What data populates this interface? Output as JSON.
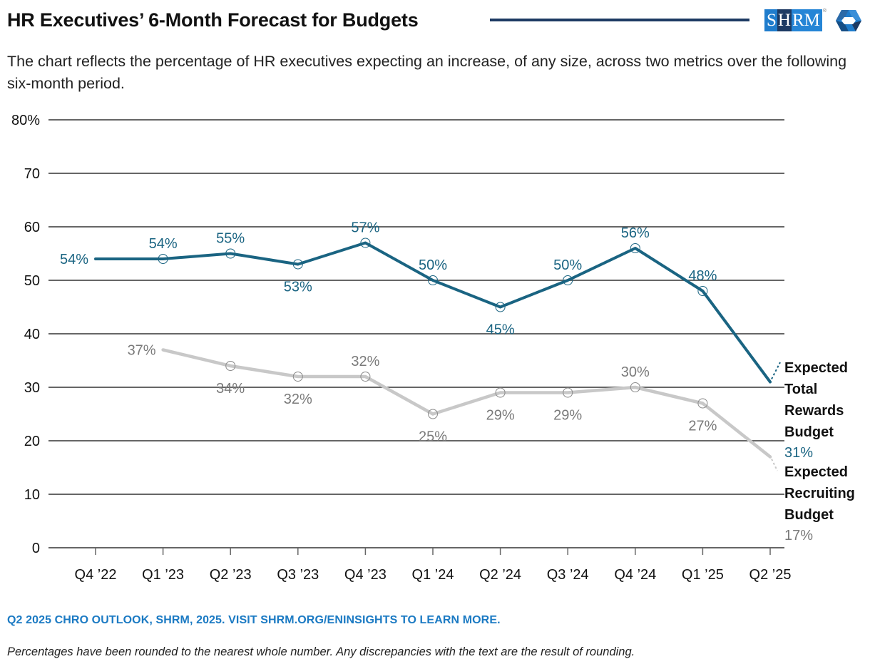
{
  "header": {
    "title": "HR Executives’ 6-Month Forecast for Budgets",
    "subtitle": "The chart reflects the percentage of HR executives expecting an increase, of any size, across two metrics over the following six-month period.",
    "logo": {
      "letters": [
        "S",
        "H",
        "RM"
      ],
      "registered": "®",
      "brand_color": "#1f7ccc",
      "brand_dark": "#1d3a63"
    }
  },
  "chart_data": {
    "type": "line",
    "title": "HR Executives’ 6-Month Forecast for Budgets",
    "xlabel": "",
    "ylabel": "",
    "ylim": [
      0,
      80
    ],
    "yticks": [
      0,
      10,
      20,
      30,
      40,
      50,
      60,
      70,
      80
    ],
    "ytick_labels": [
      "0",
      "10",
      "20",
      "30",
      "40",
      "50",
      "60",
      "70",
      "80%"
    ],
    "grid": true,
    "categories": [
      "Q4 ’22",
      "Q1 ’23",
      "Q2 ’23",
      "Q3 ’23",
      "Q4 ’23",
      "Q1 ’24",
      "Q2 ’24",
      "Q3 ’24",
      "Q4 ’24",
      "Q1 ’25",
      "Q2 ’25"
    ],
    "series": [
      {
        "name": "Expected Total Rewards Budget",
        "legend_lines": [
          "Expected",
          "Total",
          "Rewards",
          "Budget"
        ],
        "color": "#1a6482",
        "values": [
          54,
          54,
          55,
          53,
          57,
          50,
          45,
          50,
          56,
          48,
          31
        ],
        "labels": [
          "54%",
          "54%",
          "55%",
          "53%",
          "57%",
          "50%",
          "45%",
          "50%",
          "56%",
          "48%",
          "31%"
        ],
        "label_positions": [
          "left",
          "above",
          "above",
          "below",
          "above",
          "above",
          "below",
          "above",
          "above",
          "above",
          "legend"
        ]
      },
      {
        "name": "Expected Recruiting Budget",
        "legend_lines": [
          "Expected",
          "Recruiting",
          "Budget"
        ],
        "color": "#c8c8c8",
        "label_color": "#7a7a7a",
        "values": [
          null,
          37,
          34,
          32,
          32,
          25,
          29,
          29,
          30,
          27,
          17
        ],
        "labels": [
          null,
          "37%",
          "34%",
          "32%",
          "32%",
          "25%",
          "29%",
          "29%",
          "30%",
          "27%",
          "17%"
        ],
        "label_positions": [
          null,
          "left",
          "below",
          "below",
          "above",
          "below",
          "below",
          "below",
          "above",
          "below",
          "legend"
        ]
      }
    ],
    "legend": "right"
  },
  "footer": {
    "source": "Q2 2025 CHRO OUTLOOK, SHRM, 2025. VISIT SHRM.ORG/ENINSIGHTS TO LEARN MORE.",
    "note": "Percentages have been rounded to the nearest whole number. Any discrepancies with the text are the result of rounding."
  }
}
